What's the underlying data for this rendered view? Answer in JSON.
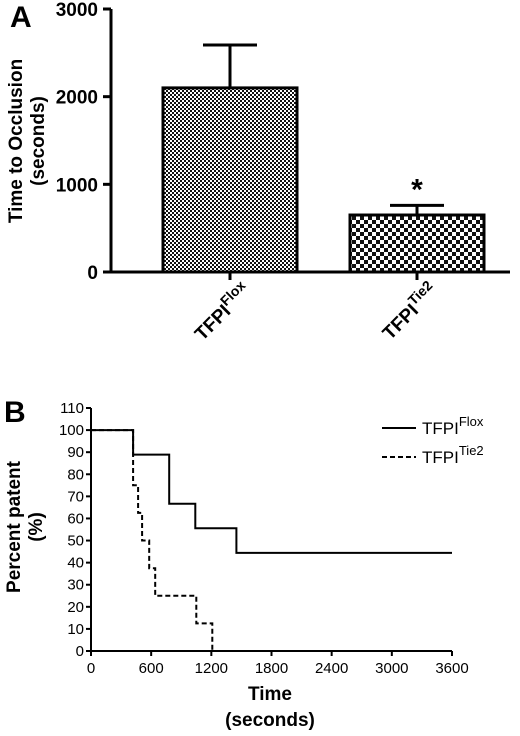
{
  "chart_data": [
    {
      "panel": "A",
      "type": "bar",
      "categories": [
        {
          "base": "TFPI",
          "sup": "Flox"
        },
        {
          "base": "TFPI",
          "sup": "Tie2"
        }
      ],
      "values": [
        2100,
        650
      ],
      "error": [
        490,
        110
      ],
      "significance": [
        "",
        "*"
      ],
      "ylabel": [
        "Time to Occlusion",
        "(seconds)"
      ],
      "ylim": [
        0,
        3000
      ],
      "yticks": [
        0,
        1000,
        2000,
        3000
      ],
      "pattern": [
        "fine-checkerboard",
        "coarse-checkerboard"
      ]
    },
    {
      "panel": "B",
      "type": "line",
      "step": true,
      "xlabel": [
        "Time",
        "(seconds)"
      ],
      "ylabel": [
        "Percent  patent",
        "(%)"
      ],
      "xlim": [
        0,
        3600
      ],
      "ylim": [
        0,
        110
      ],
      "xticks": [
        0,
        600,
        1200,
        1800,
        2400,
        3000,
        3600
      ],
      "yticks": [
        0,
        10,
        20,
        30,
        40,
        50,
        60,
        70,
        80,
        90,
        100,
        110
      ],
      "legend_position": "top-right",
      "series": [
        {
          "name": {
            "base": "TFPI",
            "sup": "Flox"
          },
          "style": "solid",
          "points": [
            [
              0,
              100
            ],
            [
              420,
              100
            ],
            [
              420,
              88.9
            ],
            [
              780,
              88.9
            ],
            [
              780,
              66.7
            ],
            [
              1040,
              66.7
            ],
            [
              1040,
              55.6
            ],
            [
              1450,
              55.6
            ],
            [
              1450,
              44.4
            ],
            [
              3600,
              44.4
            ]
          ]
        },
        {
          "name": {
            "base": "TFPI",
            "sup": "Tie2"
          },
          "style": "dashed",
          "points": [
            [
              0,
              100
            ],
            [
              420,
              100
            ],
            [
              420,
              75
            ],
            [
              470,
              75
            ],
            [
              470,
              62.5
            ],
            [
              510,
              62.5
            ],
            [
              510,
              50
            ],
            [
              580,
              50
            ],
            [
              580,
              37.5
            ],
            [
              640,
              37.5
            ],
            [
              640,
              25
            ],
            [
              1050,
              25
            ],
            [
              1050,
              12.5
            ],
            [
              1210,
              12.5
            ],
            [
              1210,
              0
            ]
          ]
        }
      ]
    }
  ]
}
